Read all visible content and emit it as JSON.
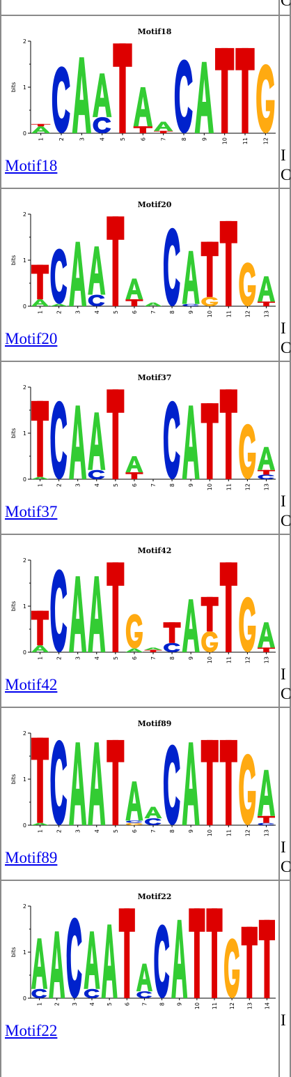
{
  "rows": [
    {
      "title": "Motif18",
      "link": "Motif18",
      "side": [
        "I",
        "C"
      ],
      "columns": [
        [
          {
            "b": "A",
            "h": 0.15
          },
          {
            "b": "T",
            "h": 0.05
          }
        ],
        [
          {
            "b": "C",
            "h": 1.45
          }
        ],
        [
          {
            "b": "A",
            "h": 1.65
          }
        ],
        [
          {
            "b": "C",
            "h": 0.35
          },
          {
            "b": "A",
            "h": 0.95
          }
        ],
        [
          {
            "b": "T",
            "h": 1.95
          }
        ],
        [
          {
            "b": "T",
            "h": 0.15
          },
          {
            "b": "A",
            "h": 0.85
          }
        ],
        [
          {
            "b": "T",
            "h": 0.05
          },
          {
            "b": "A",
            "h": 0.2
          }
        ],
        [
          {
            "b": "C",
            "h": 1.6
          }
        ],
        [
          {
            "b": "A",
            "h": 1.55
          }
        ],
        [
          {
            "b": "T",
            "h": 1.85
          }
        ],
        [
          {
            "b": "T",
            "h": 1.85
          }
        ],
        [
          {
            "b": "G",
            "h": 1.5
          }
        ]
      ]
    },
    {
      "title": "Motif20",
      "link": "Motif20",
      "side": [
        "I",
        "C"
      ],
      "columns": [
        [
          {
            "b": "A",
            "h": 0.15
          },
          {
            "b": "T",
            "h": 0.75
          }
        ],
        [
          {
            "b": "A",
            "h": 0.05
          },
          {
            "b": "C",
            "h": 1.2
          }
        ],
        [
          {
            "b": "A",
            "h": 1.4
          }
        ],
        [
          {
            "b": "C",
            "h": 0.25
          },
          {
            "b": "A",
            "h": 1.05
          }
        ],
        [
          {
            "b": "T",
            "h": 1.95
          }
        ],
        [
          {
            "b": "T",
            "h": 0.15
          },
          {
            "b": "A",
            "h": 0.45
          }
        ],
        [
          {
            "b": "A",
            "h": 0.08
          }
        ],
        [
          {
            "b": "C",
            "h": 1.7
          }
        ],
        [
          {
            "b": "C",
            "h": 0.05
          },
          {
            "b": "A",
            "h": 1.15
          }
        ],
        [
          {
            "b": "G",
            "h": 0.2
          },
          {
            "b": "T",
            "h": 1.2
          }
        ],
        [
          {
            "b": "T",
            "h": 1.85
          }
        ],
        [
          {
            "b": "G",
            "h": 0.95
          }
        ],
        [
          {
            "b": "T",
            "h": 0.1
          },
          {
            "b": "A",
            "h": 0.55
          }
        ]
      ]
    },
    {
      "title": "Motif37",
      "link": "Motif37",
      "side": [
        "I",
        "C"
      ],
      "columns": [
        [
          {
            "b": "A",
            "h": 0.05
          },
          {
            "b": "T",
            "h": 1.65
          }
        ],
        [
          {
            "b": "C",
            "h": 1.7
          }
        ],
        [
          {
            "b": "A",
            "h": 1.6
          }
        ],
        [
          {
            "b": "C",
            "h": 0.2
          },
          {
            "b": "A",
            "h": 1.25
          }
        ],
        [
          {
            "b": "T",
            "h": 1.95
          }
        ],
        [
          {
            "b": "T",
            "h": 0.15
          },
          {
            "b": "A",
            "h": 0.35
          }
        ],
        [],
        [
          {
            "b": "C",
            "h": 1.7
          }
        ],
        [
          {
            "b": "A",
            "h": 1.6
          }
        ],
        [
          {
            "b": "T",
            "h": 1.65
          }
        ],
        [
          {
            "b": "T",
            "h": 1.95
          }
        ],
        [
          {
            "b": "G",
            "h": 1.2
          }
        ],
        [
          {
            "b": "C",
            "h": 0.1
          },
          {
            "b": "T",
            "h": 0.1
          },
          {
            "b": "A",
            "h": 0.5
          }
        ]
      ]
    },
    {
      "title": "Motif42",
      "link": "Motif42",
      "side": [
        "I",
        "C"
      ],
      "columns": [
        [
          {
            "b": "A",
            "h": 0.15
          },
          {
            "b": "T",
            "h": 0.75
          }
        ],
        [
          {
            "b": "C",
            "h": 1.8
          }
        ],
        [
          {
            "b": "A",
            "h": 1.65
          }
        ],
        [
          {
            "b": "A",
            "h": 1.65
          }
        ],
        [
          {
            "b": "T",
            "h": 1.95
          }
        ],
        [
          {
            "b": "A",
            "h": 0.08
          },
          {
            "b": "G",
            "h": 0.75
          }
        ],
        [
          {
            "b": "T",
            "h": 0.05
          },
          {
            "b": "A",
            "h": 0.05
          }
        ],
        [
          {
            "b": "C",
            "h": 0.2
          },
          {
            "b": "T",
            "h": 0.45
          }
        ],
        [
          {
            "b": "A",
            "h": 1.15
          }
        ],
        [
          {
            "b": "G",
            "h": 0.45
          },
          {
            "b": "T",
            "h": 0.75
          }
        ],
        [
          {
            "b": "T",
            "h": 1.95
          }
        ],
        [
          {
            "b": "G",
            "h": 1.2
          }
        ],
        [
          {
            "b": "T",
            "h": 0.1
          },
          {
            "b": "A",
            "h": 0.55
          }
        ]
      ]
    },
    {
      "title": "Motif89",
      "link": "Motif89",
      "side": [
        "I",
        "C"
      ],
      "columns": [
        [
          {
            "b": "A",
            "h": 0.05
          },
          {
            "b": "T",
            "h": 1.85
          }
        ],
        [
          {
            "b": "C",
            "h": 1.85
          }
        ],
        [
          {
            "b": "A",
            "h": 1.8
          }
        ],
        [
          {
            "b": "A",
            "h": 1.8
          }
        ],
        [
          {
            "b": "T",
            "h": 1.85
          }
        ],
        [
          {
            "b": "G",
            "h": 0.05
          },
          {
            "b": "C",
            "h": 0.05
          },
          {
            "b": "A",
            "h": 0.85
          }
        ],
        [
          {
            "b": "C",
            "h": 0.15
          },
          {
            "b": "A",
            "h": 0.25
          }
        ],
        [
          {
            "b": "C",
            "h": 1.75
          }
        ],
        [
          {
            "b": "A",
            "h": 1.8
          }
        ],
        [
          {
            "b": "T",
            "h": 1.85
          }
        ],
        [
          {
            "b": "T",
            "h": 1.85
          }
        ],
        [
          {
            "b": "G",
            "h": 1.55
          }
        ],
        [
          {
            "b": "C",
            "h": 0.05
          },
          {
            "b": "T",
            "h": 0.15
          },
          {
            "b": "A",
            "h": 1.0
          }
        ]
      ]
    },
    {
      "title": "Motif22",
      "link": "Motif22",
      "side": [
        "I"
      ],
      "columns": [
        [
          {
            "b": "C",
            "h": 0.2
          },
          {
            "b": "A",
            "h": 1.1
          }
        ],
        [
          {
            "b": "A",
            "h": 1.45
          }
        ],
        [
          {
            "b": "C",
            "h": 1.75
          }
        ],
        [
          {
            "b": "C",
            "h": 0.2
          },
          {
            "b": "A",
            "h": 1.25
          }
        ],
        [
          {
            "b": "A",
            "h": 1.6
          }
        ],
        [
          {
            "b": "T",
            "h": 1.95
          }
        ],
        [
          {
            "b": "C",
            "h": 0.15
          },
          {
            "b": "A",
            "h": 0.6
          }
        ],
        [
          {
            "b": "C",
            "h": 1.6
          }
        ],
        [
          {
            "b": "A",
            "h": 1.7
          }
        ],
        [
          {
            "b": "T",
            "h": 1.95
          }
        ],
        [
          {
            "b": "T",
            "h": 1.95
          }
        ],
        [
          {
            "b": "G",
            "h": 1.3
          }
        ],
        [
          {
            "b": "T",
            "h": 1.55
          }
        ],
        [
          {
            "b": "T",
            "h": 1.7
          }
        ]
      ]
    }
  ],
  "colors": {
    "A": "#33cc33",
    "C": "#0022cc",
    "G": "#ffaa11",
    "T": "#dd0000",
    "frame": "#8a8a8a",
    "link": "#0000ee"
  }
}
